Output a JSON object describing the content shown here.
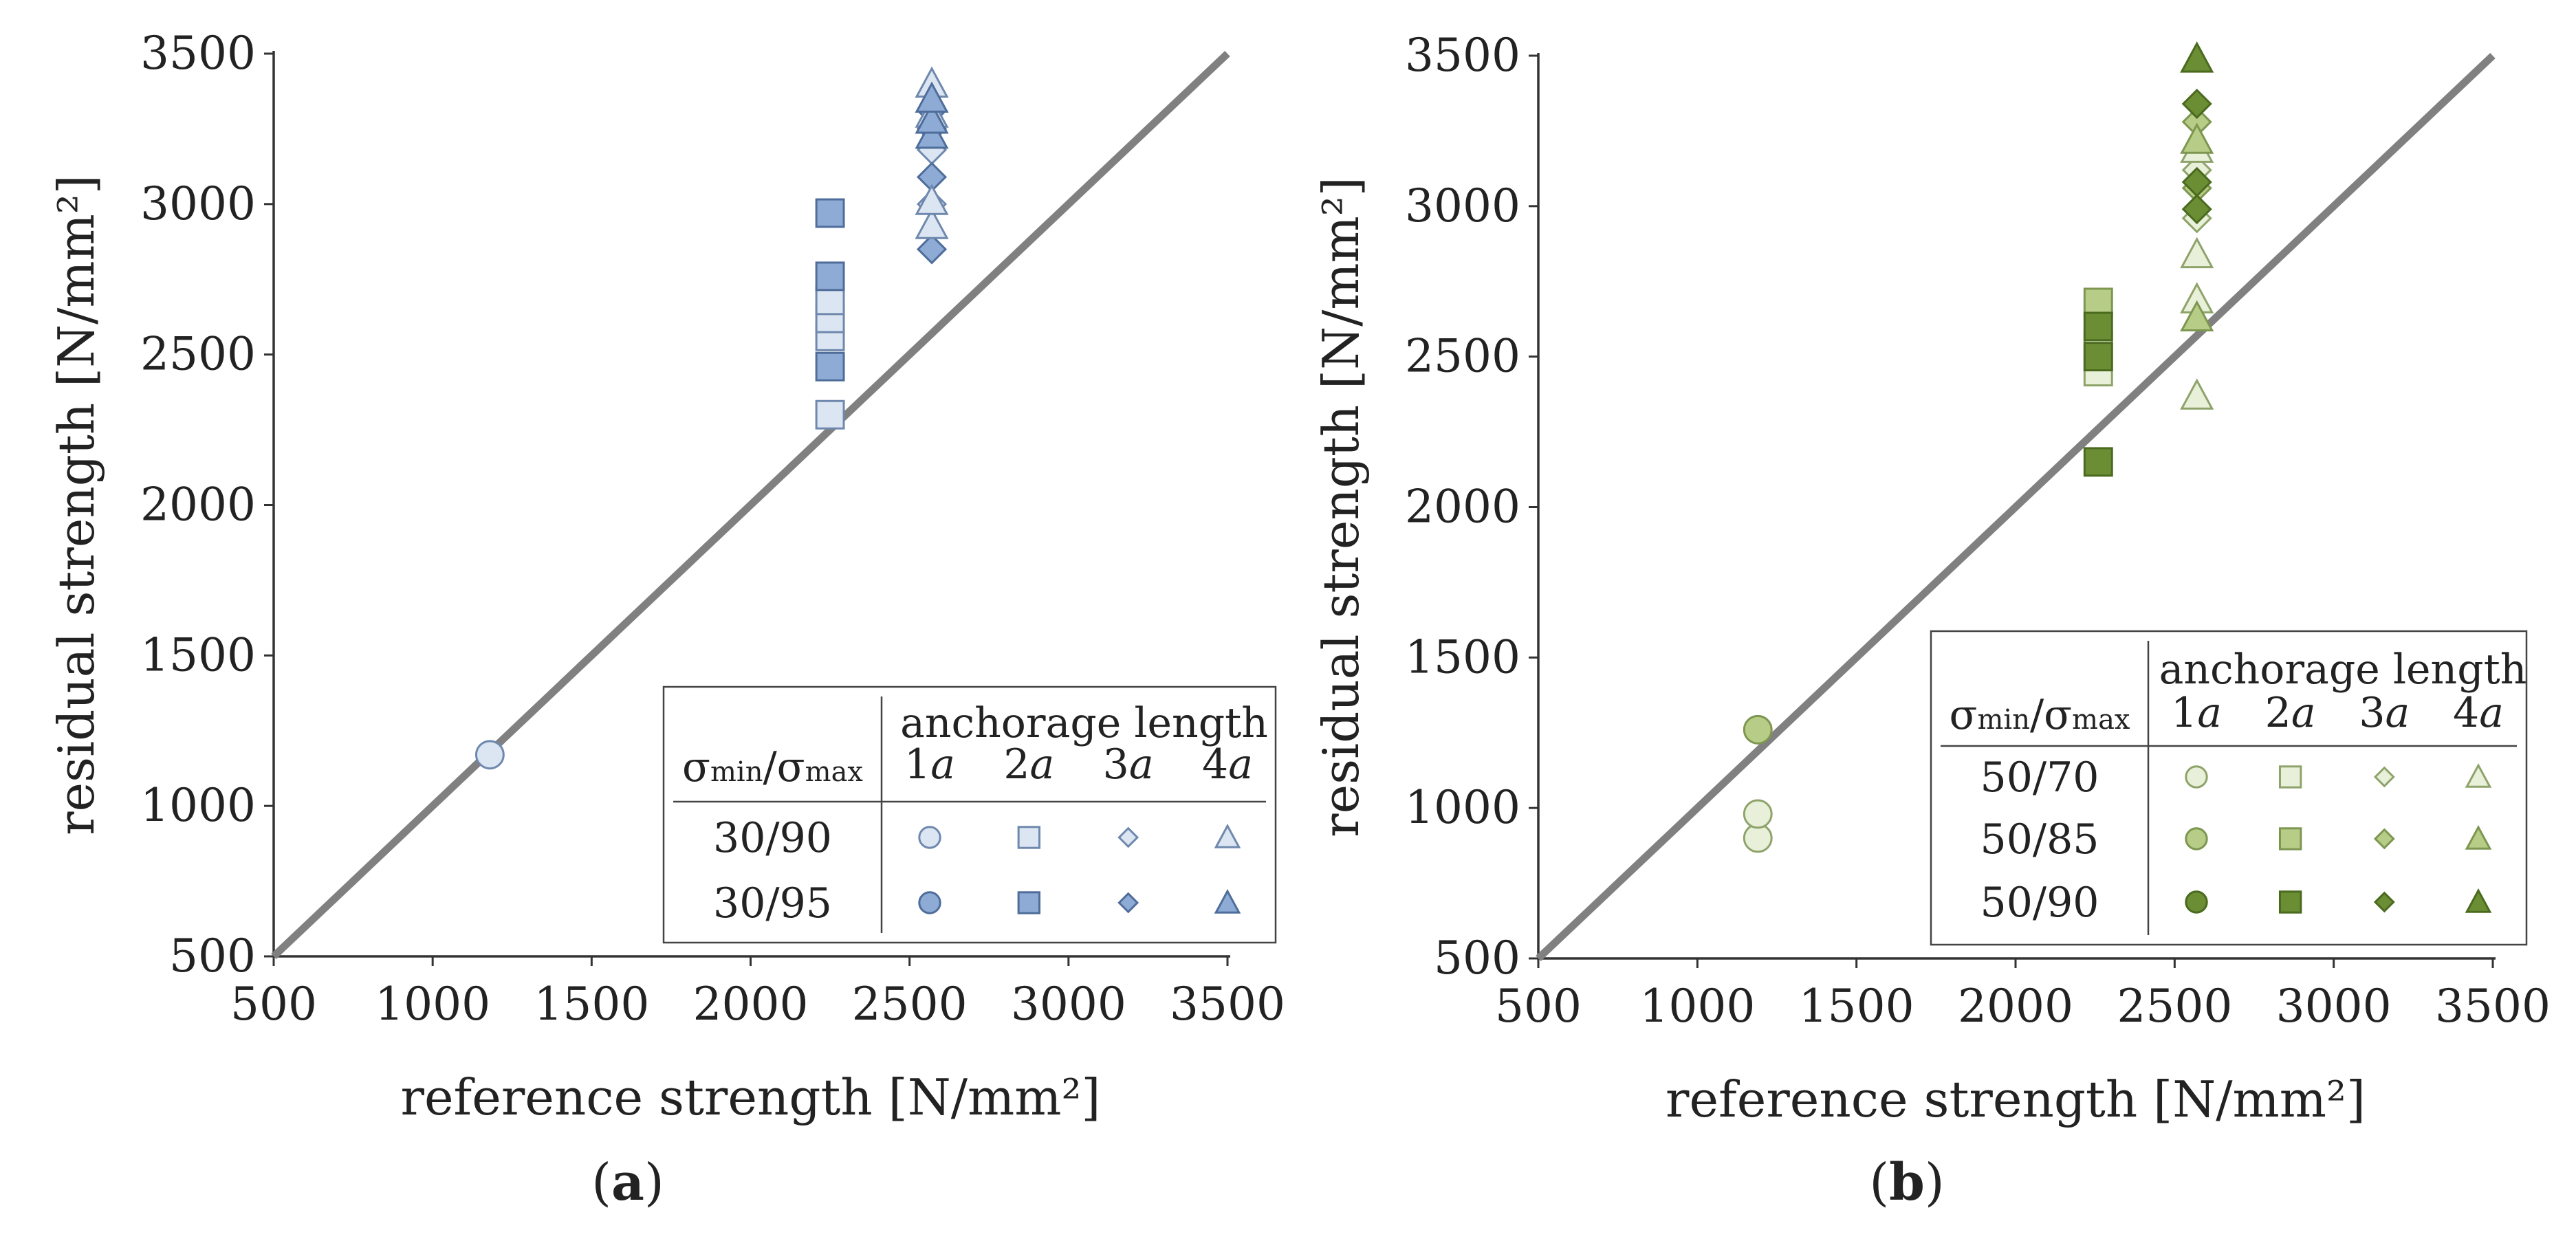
{
  "figure": {
    "panel_labels": [
      "a",
      "b"
    ]
  },
  "chart_data": [
    {
      "type": "scatter",
      "panel": "a",
      "xlabel": "reference strength [N/mm²]",
      "ylabel": "residual strength [N/mm²]",
      "xlim": [
        500,
        3500
      ],
      "ylim": [
        500,
        3500
      ],
      "xticks": [
        500,
        1000,
        1500,
        2000,
        2500,
        3000,
        3500
      ],
      "yticks": [
        500,
        1000,
        1500,
        2000,
        2500,
        3000,
        3500
      ],
      "reference_line": {
        "from": [
          500,
          500
        ],
        "to": [
          3500,
          3500
        ],
        "color": "#808080"
      },
      "legend": {
        "header": "anchorage length",
        "ratio_label": {
          "main": "σ",
          "sub1": "min",
          "slash": "/",
          "main2": "σ",
          "sub2": "max"
        },
        "columns": [
          "1a",
          "2a",
          "3a",
          "4a"
        ],
        "column_number": [
          "1",
          "2",
          "3",
          "4"
        ],
        "column_letter": "a",
        "placement": "bottom-right",
        "rows": [
          {
            "label": "30/90",
            "fill": "#dce6f2"
          },
          {
            "label": "30/95",
            "fill": "#8eabd6"
          }
        ]
      },
      "series": [
        {
          "ratio": "30/90",
          "anchorage": "1a",
          "marker": "circle",
          "fill": "#dce6f2",
          "stroke": "#6f88ad",
          "points": [
            [
              1180,
              1170
            ]
          ]
        },
        {
          "ratio": "30/90",
          "anchorage": "2a",
          "marker": "square",
          "fill": "#dce6f2",
          "stroke": "#6f88ad",
          "points": [
            [
              2250,
              2300
            ],
            [
              2250,
              2560
            ],
            [
              2250,
              2620
            ],
            [
              2250,
              2680
            ]
          ]
        },
        {
          "ratio": "30/95",
          "anchorage": "2a",
          "marker": "square",
          "fill": "#8eabd6",
          "stroke": "#4f6d9a",
          "points": [
            [
              2250,
              2460
            ],
            [
              2250,
              2760
            ],
            [
              2250,
              2970
            ]
          ]
        },
        {
          "ratio": "30/90",
          "anchorage": "3a",
          "marker": "diamond",
          "fill": "#dce6f2",
          "stroke": "#6f88ad",
          "points": [
            [
              2570,
              3000
            ],
            [
              2570,
              3180
            ]
          ]
        },
        {
          "ratio": "30/95",
          "anchorage": "3a",
          "marker": "diamond",
          "fill": "#8eabd6",
          "stroke": "#4f6d9a",
          "points": [
            [
              2570,
              2850
            ],
            [
              2570,
              3090
            ],
            [
              2570,
              3250
            ],
            [
              2570,
              3310
            ]
          ]
        },
        {
          "ratio": "30/90",
          "anchorage": "4a",
          "marker": "triangle",
          "fill": "#dce6f2",
          "stroke": "#6f88ad",
          "points": [
            [
              2570,
              2930
            ],
            [
              2570,
              3010
            ],
            [
              2570,
              3300
            ],
            [
              2570,
              3400
            ]
          ]
        },
        {
          "ratio": "30/95",
          "anchorage": "4a",
          "marker": "triangle",
          "fill": "#8eabd6",
          "stroke": "#4f6d9a",
          "points": [
            [
              2570,
              3230
            ],
            [
              2570,
              3280
            ],
            [
              2570,
              3350
            ]
          ]
        }
      ]
    },
    {
      "type": "scatter",
      "panel": "b",
      "xlabel": "reference strength [N/mm²]",
      "ylabel": "residual strength [N/mm²]",
      "xlim": [
        500,
        3500
      ],
      "ylim": [
        500,
        3500
      ],
      "xticks": [
        500,
        1000,
        1500,
        2000,
        2500,
        3000,
        3500
      ],
      "yticks": [
        500,
        1000,
        1500,
        2000,
        2500,
        3000,
        3500
      ],
      "reference_line": {
        "from": [
          500,
          500
        ],
        "to": [
          3500,
          3500
        ],
        "color": "#808080"
      },
      "legend": {
        "header": "anchorage length",
        "ratio_label": {
          "main": "σ",
          "sub1": "min",
          "slash": "/",
          "main2": "σ",
          "sub2": "max"
        },
        "columns": [
          "1a",
          "2a",
          "3a",
          "4a"
        ],
        "column_number": [
          "1",
          "2",
          "3",
          "4"
        ],
        "column_letter": "a",
        "placement": "bottom-right",
        "rows": [
          {
            "label": "50/70",
            "fill": "#e9f0da"
          },
          {
            "label": "50/85",
            "fill": "#b6cc87"
          },
          {
            "label": "50/90",
            "fill": "#6b8e35"
          }
        ]
      },
      "series": [
        {
          "ratio": "50/70",
          "anchorage": "1a",
          "marker": "circle",
          "fill": "#e9f0da",
          "stroke": "#8ea36a",
          "points": [
            [
              1190,
              900
            ],
            [
              1190,
              980
            ]
          ]
        },
        {
          "ratio": "50/85",
          "anchorage": "1a",
          "marker": "circle",
          "fill": "#b6cc87",
          "stroke": "#7d9650",
          "points": [
            [
              1190,
              1260
            ]
          ]
        },
        {
          "ratio": "50/70",
          "anchorage": "2a",
          "marker": "square",
          "fill": "#e9f0da",
          "stroke": "#8ea36a",
          "points": [
            [
              2260,
              2450
            ],
            [
              2260,
              2540
            ]
          ]
        },
        {
          "ratio": "50/85",
          "anchorage": "2a",
          "marker": "square",
          "fill": "#b6cc87",
          "stroke": "#7d9650",
          "points": [
            [
              2260,
              2680
            ]
          ]
        },
        {
          "ratio": "50/90",
          "anchorage": "2a",
          "marker": "square",
          "fill": "#6b8e35",
          "stroke": "#4a6a1e",
          "points": [
            [
              2260,
              2150
            ],
            [
              2260,
              2500
            ],
            [
              2260,
              2600
            ]
          ]
        },
        {
          "ratio": "50/70",
          "anchorage": "3a",
          "marker": "diamond",
          "fill": "#e9f0da",
          "stroke": "#8ea36a",
          "points": [
            [
              2570,
              2960
            ],
            [
              2570,
              3120
            ]
          ]
        },
        {
          "ratio": "50/85",
          "anchorage": "3a",
          "marker": "diamond",
          "fill": "#b6cc87",
          "stroke": "#7d9650",
          "points": [
            [
              2570,
              3060
            ],
            [
              2570,
              3280
            ]
          ]
        },
        {
          "ratio": "50/90",
          "anchorage": "3a",
          "marker": "diamond",
          "fill": "#6b8e35",
          "stroke": "#4a6a1e",
          "points": [
            [
              2570,
              2990
            ],
            [
              2570,
              3080
            ],
            [
              2570,
              3340
            ]
          ]
        },
        {
          "ratio": "50/70",
          "anchorage": "4a",
          "marker": "triangle",
          "fill": "#e9f0da",
          "stroke": "#8ea36a",
          "points": [
            [
              2570,
              2370
            ],
            [
              2570,
              2690
            ],
            [
              2570,
              2840
            ],
            [
              2570,
              3190
            ]
          ]
        },
        {
          "ratio": "50/85",
          "anchorage": "4a",
          "marker": "triangle",
          "fill": "#b6cc87",
          "stroke": "#7d9650",
          "points": [
            [
              2570,
              2630
            ],
            [
              2570,
              3220
            ]
          ]
        },
        {
          "ratio": "50/90",
          "anchorage": "4a",
          "marker": "triangle",
          "fill": "#6b8e35",
          "stroke": "#4a6a1e",
          "points": [
            [
              2570,
              3490
            ]
          ]
        }
      ]
    }
  ]
}
